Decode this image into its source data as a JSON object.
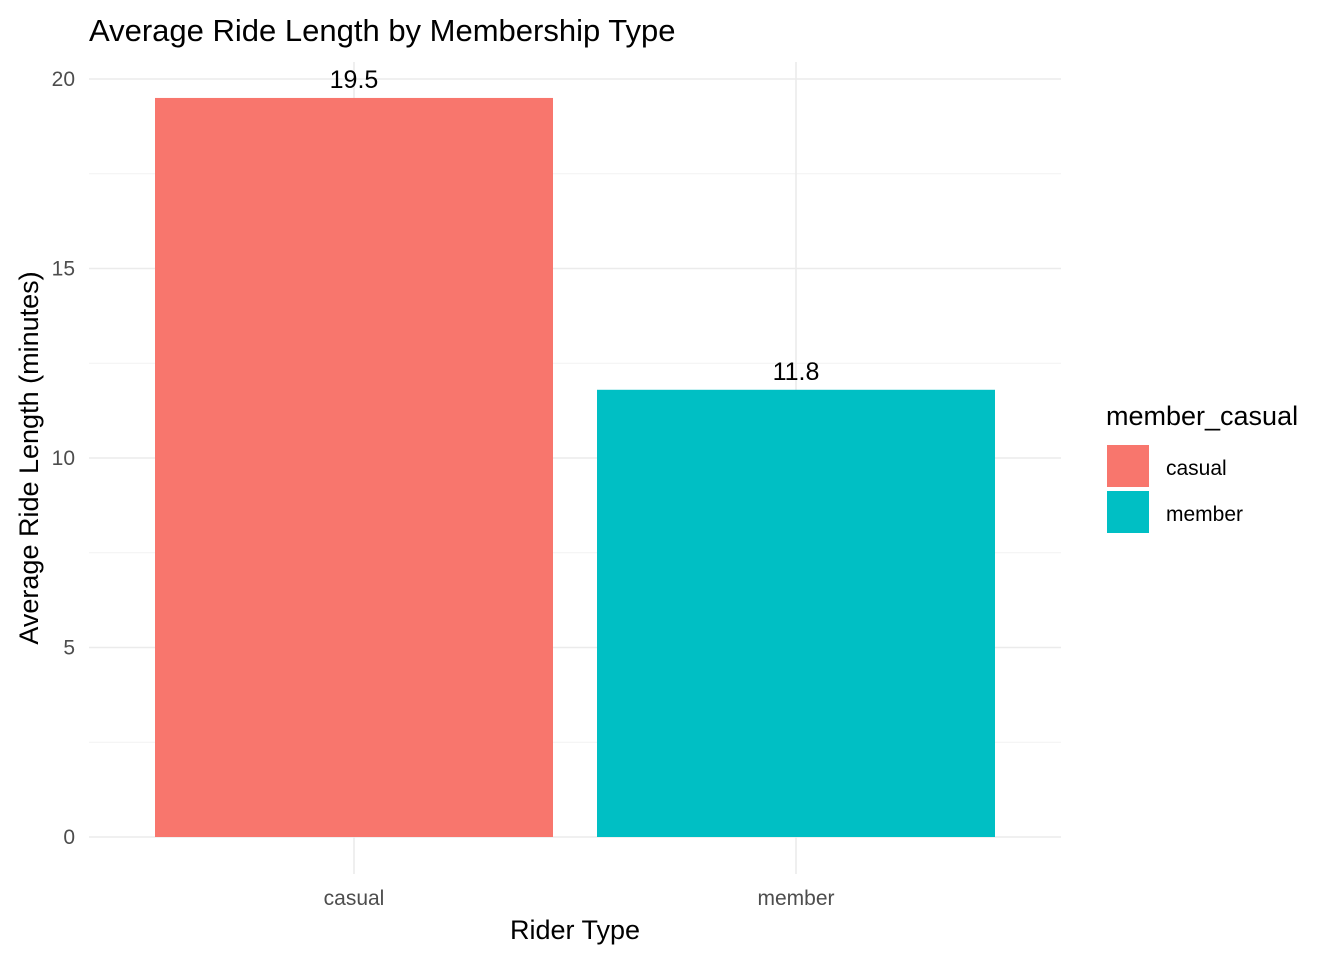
{
  "chart_data": {
    "type": "bar",
    "title": "Average Ride Length by Membership Type",
    "xlabel": "Rider Type",
    "ylabel": "Average Ride Length (minutes)",
    "categories": [
      "casual",
      "member"
    ],
    "values": [
      19.5,
      11.8
    ],
    "data_labels": [
      "19.5",
      "11.8"
    ],
    "colors": [
      "#F8766D",
      "#00BFC4"
    ],
    "ylim": [
      0,
      20.4
    ],
    "y_ticks": [
      0,
      5,
      10,
      15,
      20
    ],
    "y_tick_labels": [
      "0",
      "5",
      "10",
      "15",
      "20"
    ],
    "grid": true,
    "legend": {
      "title": "member_casual",
      "position": "right",
      "entries": [
        "casual",
        "member"
      ]
    }
  }
}
